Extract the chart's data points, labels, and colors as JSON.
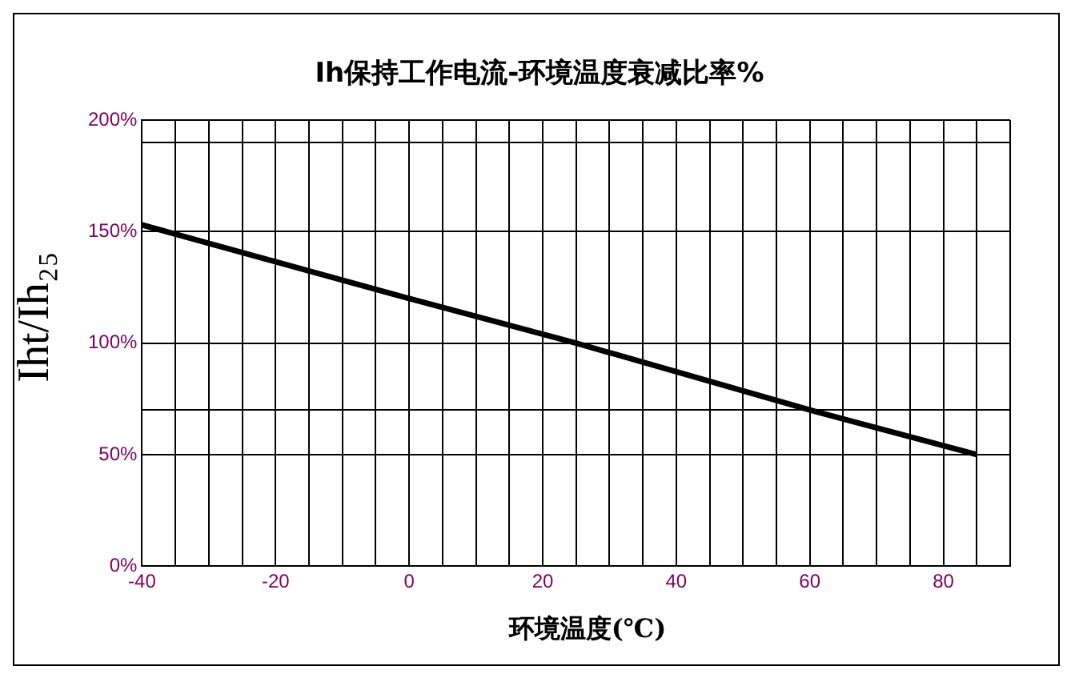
{
  "chart_data": {
    "type": "line",
    "title": "Ih保持工作电流-环境温度衰减比率%",
    "xlabel": "环境温度(℃)",
    "ylabel": "Iht/Ih₂₅",
    "x": [
      -40,
      0,
      25,
      60,
      85
    ],
    "series": [
      {
        "color": "#000000",
        "values": [
          153,
          120,
          100,
          70,
          50
        ]
      }
    ],
    "xlim": [
      -40,
      90
    ],
    "xticks": [
      -40,
      {
        "value": -35,
        "label": null
      },
      {
        "value": -30,
        "label": null
      },
      {
        "value": -25,
        "label": null
      },
      -20,
      {
        "value": -15,
        "label": null
      },
      {
        "value": -10,
        "label": null
      },
      {
        "value": -5,
        "label": null
      },
      0,
      {
        "value": 5,
        "label": null
      },
      {
        "value": 10,
        "label": null
      },
      {
        "value": 15,
        "label": null
      },
      20,
      {
        "value": 25,
        "label": null
      },
      {
        "value": 30,
        "label": null
      },
      {
        "value": 35,
        "label": null
      },
      40,
      {
        "value": 45,
        "label": null
      },
      {
        "value": 50,
        "label": null
      },
      {
        "value": 55,
        "label": null
      },
      60,
      {
        "value": 65,
        "label": null
      },
      {
        "value": 70,
        "label": null
      },
      {
        "value": 75,
        "label": null
      },
      80,
      {
        "value": 85,
        "label": null
      },
      {
        "value": 90,
        "label": null
      }
    ],
    "ylim": [
      0,
      200
    ],
    "yticks": [
      {
        "value": 0,
        "label": "0%"
      },
      {
        "value": 50,
        "label": "50%"
      },
      {
        "value": 70,
        "label": null
      },
      {
        "value": 100,
        "label": "100%"
      },
      {
        "value": 150,
        "label": "150%"
      },
      {
        "value": 190,
        "label": null
      },
      {
        "value": 200,
        "label": "200%"
      }
    ],
    "grid": true,
    "legend": false,
    "marker": "none",
    "line_style": "solid"
  }
}
